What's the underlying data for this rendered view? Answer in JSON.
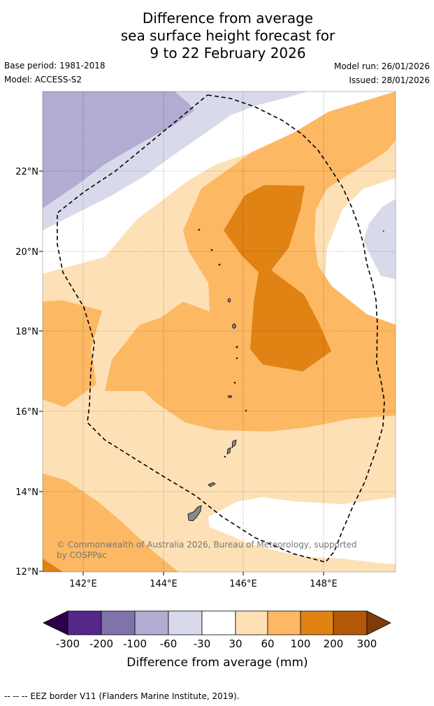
{
  "title": {
    "line1": "Difference from average",
    "line2": "sea surface height forecast for",
    "line3": "9 to 22 February 2026"
  },
  "meta": {
    "base_period": "Base period: 1981-2018",
    "model": "Model: ACCESS-S2",
    "model_run": "Model run: 26/01/2026",
    "issued": "Issued: 28/01/2026"
  },
  "axes": {
    "lat_labels": [
      "22°N",
      "20°N",
      "18°N",
      "16°N",
      "14°N",
      "12°N"
    ],
    "lon_labels": [
      "142°E",
      "144°E",
      "146°E",
      "148°E"
    ]
  },
  "copyright": {
    "line1": "© Commonwealth of Australia 2026, Bureau of Meteorology, supported",
    "line2": "by COSPPac"
  },
  "colorbar": {
    "ticks": [
      "-300",
      "-200",
      "-100",
      "-60",
      "-30",
      "30",
      "60",
      "100",
      "200",
      "300"
    ],
    "label": "Difference from average (mm)",
    "colors": {
      "below_min": "#2d004b",
      "c_m300_m200": "#542788",
      "c_m200_m100": "#8073ac",
      "c_m100_m60": "#b2abd2",
      "c_m60_m30": "#d8daeb",
      "c_m30_30": "#ffffff",
      "c_30_60": "#fee0b6",
      "c_60_100": "#fdb863",
      "c_100_200": "#e08214",
      "c_200_300": "#b35806",
      "above_max": "#7f3b08"
    }
  },
  "footer": {
    "legend": "--  --  -- EEZ border V11 (Flanders Marine Institute, 2019)."
  }
}
